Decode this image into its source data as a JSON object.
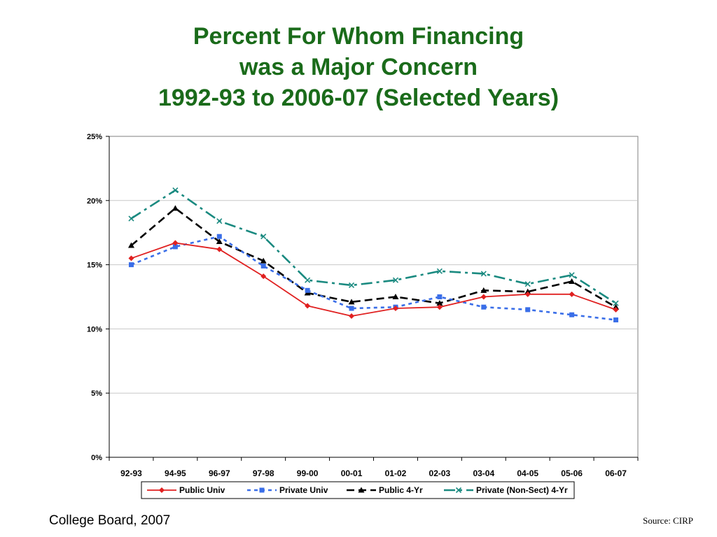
{
  "slide": {
    "title_lines": [
      "Percent For Whom Financing",
      "was a Major Concern",
      "1992-93 to 2006-07 (Selected Years)"
    ],
    "footer_left": "College Board, 2007",
    "footer_right": "Source: CIRP"
  },
  "chart_data": {
    "type": "line",
    "title": "Percent For Whom Financing was a Major Concern 1992-93 to 2006-07 (Selected Years)",
    "xlabel": "",
    "ylabel": "",
    "categories": [
      "92-93",
      "94-95",
      "96-97",
      "97-98",
      "99-00",
      "00-01",
      "01-02",
      "02-03",
      "03-04",
      "04-05",
      "05-06",
      "06-07"
    ],
    "ylim": [
      0,
      25
    ],
    "yticks": [
      0,
      5,
      10,
      15,
      20,
      25
    ],
    "ytick_labels": [
      "0%",
      "5%",
      "10%",
      "15%",
      "20%",
      "25%"
    ],
    "grid": true,
    "legend_position": "bottom",
    "series": [
      {
        "name": "Public Univ",
        "color": "#e02020",
        "dash": "solid",
        "marker": "diamond",
        "values": [
          15.5,
          16.7,
          16.2,
          14.1,
          11.8,
          11.0,
          11.6,
          11.7,
          12.5,
          12.7,
          12.7,
          11.5
        ]
      },
      {
        "name": "Private Univ",
        "color": "#3a6ee8",
        "dash": "dotted",
        "marker": "square",
        "values": [
          15.0,
          16.4,
          17.2,
          14.9,
          13.0,
          11.6,
          11.7,
          12.5,
          11.7,
          11.5,
          11.1,
          10.7
        ]
      },
      {
        "name": "Public 4-Yr",
        "color": "#000000",
        "dash": "dashed",
        "marker": "triangle",
        "values": [
          16.5,
          19.4,
          16.8,
          15.3,
          12.8,
          12.1,
          12.5,
          12.0,
          13.0,
          12.9,
          13.7,
          11.7
        ]
      },
      {
        "name": "Private (Non-Sect) 4-Yr",
        "color": "#1a8a80",
        "dash": "dashdot",
        "marker": "x",
        "values": [
          18.6,
          20.8,
          18.4,
          17.2,
          13.8,
          13.4,
          13.8,
          14.5,
          14.3,
          13.5,
          14.2,
          12.0
        ]
      }
    ]
  }
}
